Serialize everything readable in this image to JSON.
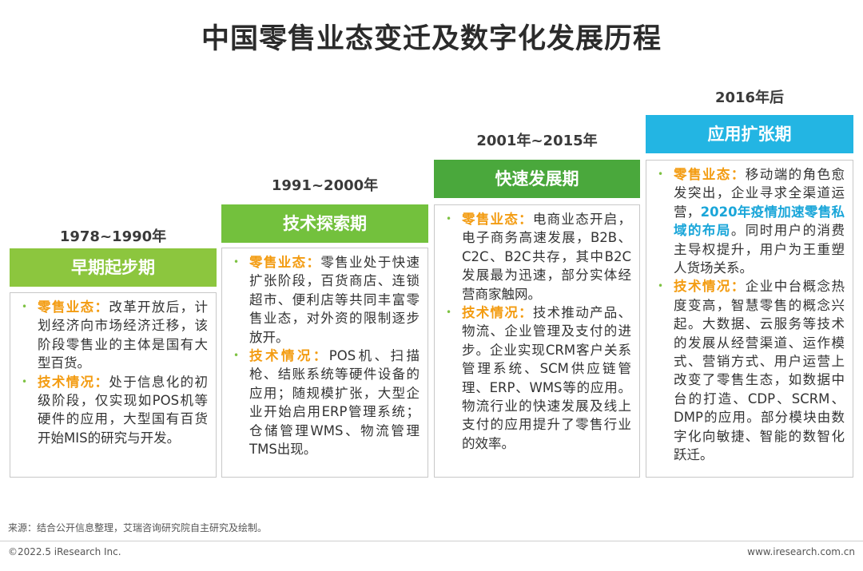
{
  "title": "中国零售业态变迁及数字化发展历程",
  "periods": [
    {
      "year": "1978~1990年",
      "phase": "早期起步期",
      "phase_color": "#8cc63e",
      "retail_label": "零售业态：",
      "retail_text": "改革开放后，计划经济向市场经济迁移，该阶段零售业的主体是国有大型百货。",
      "tech_label": "技术情况：",
      "tech_text": "处于信息化的初级阶段，仅实现如POS机等硬件的应用，大型国有百货开始MIS的研究与开发。"
    },
    {
      "year": "1991~2000年",
      "phase": "技术探索期",
      "phase_color": "#73c13d",
      "retail_label": "零售业态：",
      "retail_text": "零售业处于快速扩张阶段，百货商店、连锁超市、便利店等共同丰富零售业态，对外资的限制逐步放开。",
      "tech_label": "技术情况：",
      "tech_text": "POS机、扫描枪、结账系统等硬件设备的应用；随规模扩张，大型企业开始启用ERP管理系统；仓储管理WMS、物流管理TMS出现。"
    },
    {
      "year": "2001年~2015年",
      "phase": "快速发展期",
      "phase_color": "#4aa83c",
      "retail_label": "零售业态：",
      "retail_text": "电商业态开启，电子商务高速发展，B2B、C2C、B2C共存，其中B2C发展最为迅速，部分实体经营商家触网。",
      "tech_label": "技术情况：",
      "tech_text": "技术推动产品、物流、企业管理及支付的进步。企业实现CRM客户关系管理系统、SCM供应链管理、ERP、WMS等的应用。物流行业的快速发展及线上支付的应用提升了零售行业的效率。"
    },
    {
      "year": "2016年后",
      "phase": "应用扩张期",
      "phase_color": "#23b5e3",
      "retail_label": "零售业态：",
      "retail_text_a": "移动端的角色愈发突出，企业寻求全渠道运营，",
      "retail_highlight": "2020年疫情加速零售私域的布局",
      "retail_text_b": "。同时用户的消费主导权提升，用户为王重塑人货场关系。",
      "tech_label": "技术情况：",
      "tech_text": "企业中台概念热度变高，智慧零售的概念兴起。大数据、云服务等技术的发展从经营渠道、运作模式、营销方式、用户运营上改变了零售生态，如数据中台的打造、CDP、SCRM、DMP的应用。部分模块由数字化向敏捷、智能的数智化跃迁。"
    }
  ],
  "colors": {
    "label_orange": "#f39c12",
    "bullet_green": "#7dc242",
    "highlight_blue": "#1aa6d9"
  },
  "footer": {
    "source": "来源：结合公开信息整理，艾瑞咨询研究院自主研究及绘制。",
    "copyright": "©2022.5 iResearch Inc.",
    "website": "www.iresearch.com.cn"
  }
}
